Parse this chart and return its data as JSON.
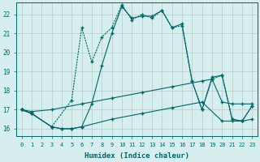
{
  "xlabel": "Humidex (Indice chaleur)",
  "background_color": "#d6eeee",
  "grid_color": "#b8c8c8",
  "line_color": "#006666",
  "xlim": [
    -0.5,
    23.5
  ],
  "ylim": [
    15.6,
    22.6
  ],
  "yticks": [
    16,
    17,
    18,
    19,
    20,
    21,
    22
  ],
  "xticks": [
    0,
    1,
    2,
    3,
    4,
    5,
    6,
    7,
    8,
    9,
    10,
    11,
    12,
    13,
    14,
    15,
    16,
    17,
    18,
    19,
    20,
    21,
    22,
    23
  ],
  "line1_x": [
    0,
    1,
    3,
    4,
    5,
    6,
    7,
    8,
    9,
    10,
    11,
    12,
    13,
    14,
    15,
    16,
    17,
    18,
    19,
    20,
    21,
    22,
    23
  ],
  "line1_y": [
    17.0,
    16.8,
    16.1,
    16.0,
    16.0,
    16.1,
    17.3,
    19.3,
    21.0,
    22.4,
    21.8,
    21.9,
    21.9,
    22.2,
    21.3,
    21.5,
    18.5,
    17.0,
    18.7,
    18.8,
    16.5,
    16.4,
    17.2
  ],
  "line2_x": [
    0,
    1,
    3,
    5,
    6,
    7,
    8,
    9,
    10,
    11,
    12,
    13,
    14,
    15,
    16,
    17,
    18,
    19,
    20,
    21,
    22,
    23
  ],
  "line2_y": [
    17.0,
    16.8,
    16.1,
    17.5,
    21.3,
    19.5,
    20.8,
    21.3,
    22.5,
    21.7,
    22.0,
    21.8,
    22.2,
    21.3,
    21.4,
    18.5,
    17.0,
    18.6,
    18.8,
    16.5,
    16.4,
    17.2
  ],
  "line3_x": [
    0,
    1,
    3,
    6,
    9,
    12,
    15,
    18,
    19,
    20,
    21,
    22,
    23
  ],
  "line3_y": [
    17.0,
    16.9,
    17.0,
    17.3,
    17.6,
    17.9,
    18.2,
    18.5,
    18.6,
    17.4,
    17.3,
    17.3,
    17.3
  ],
  "line4_x": [
    0,
    1,
    3,
    4,
    5,
    6,
    9,
    12,
    15,
    18,
    20,
    21,
    22,
    23
  ],
  "line4_y": [
    17.0,
    16.8,
    16.1,
    16.0,
    16.0,
    16.1,
    16.5,
    16.8,
    17.1,
    17.4,
    16.4,
    16.4,
    16.4,
    16.5
  ]
}
